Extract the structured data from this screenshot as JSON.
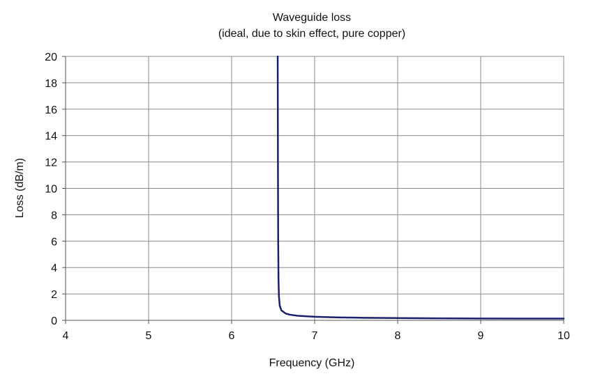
{
  "chart_data": {
    "type": "line",
    "title": "Waveguide loss",
    "subtitle": "(ideal, due to skin effect, pure copper)",
    "xlabel": "Frequency  (GHz)",
    "ylabel": "Loss (dB/m)",
    "xlim": [
      4,
      10
    ],
    "ylim": [
      0,
      20
    ],
    "xticks": [
      4,
      5,
      6,
      7,
      8,
      9,
      10
    ],
    "yticks": [
      0,
      2,
      4,
      6,
      8,
      10,
      12,
      14,
      16,
      18,
      20
    ],
    "grid": true,
    "legend": "none",
    "series": [
      {
        "color": "#1a1f6e",
        "points": [
          [
            6.555,
            20.0
          ],
          [
            6.558,
            12.0
          ],
          [
            6.561,
            6.0
          ],
          [
            6.565,
            3.0
          ],
          [
            6.57,
            1.8
          ],
          [
            6.58,
            1.1
          ],
          [
            6.6,
            0.75
          ],
          [
            6.65,
            0.52
          ],
          [
            6.7,
            0.43
          ],
          [
            6.8,
            0.34
          ],
          [
            7.0,
            0.27
          ],
          [
            7.3,
            0.22
          ],
          [
            7.6,
            0.19
          ],
          [
            8.0,
            0.17
          ],
          [
            8.5,
            0.15
          ],
          [
            9.0,
            0.14
          ],
          [
            9.5,
            0.13
          ],
          [
            10.0,
            0.13
          ]
        ]
      }
    ]
  }
}
